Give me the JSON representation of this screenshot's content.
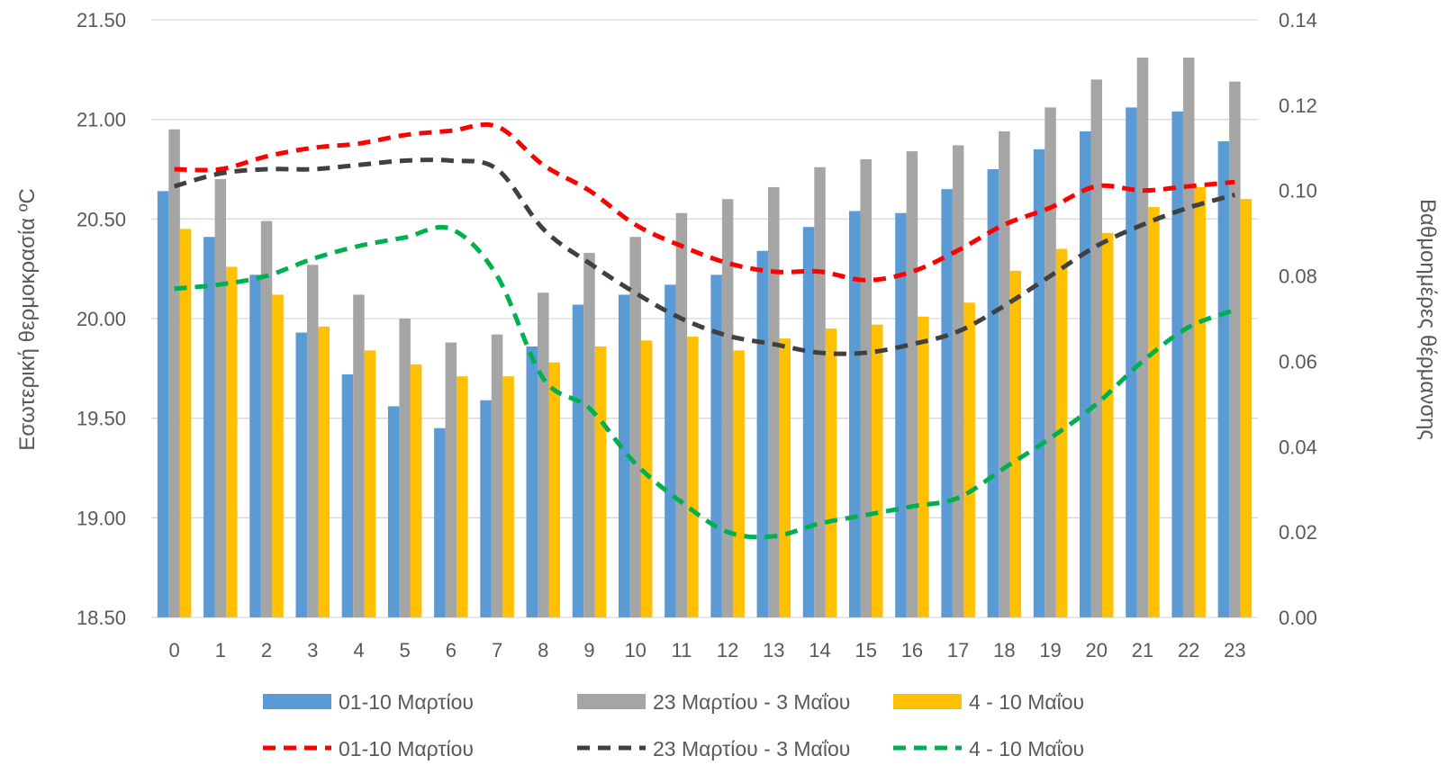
{
  "chart_data": {
    "type": "bar",
    "categories": [
      "0",
      "1",
      "2",
      "3",
      "4",
      "5",
      "6",
      "7",
      "8",
      "9",
      "10",
      "11",
      "12",
      "13",
      "14",
      "15",
      "16",
      "17",
      "18",
      "19",
      "20",
      "21",
      "22",
      "23"
    ],
    "y_left": {
      "label": "Εσωτερική θερμοκρασία ºC",
      "ylim": [
        18.5,
        21.5
      ],
      "ticks": [
        "18.50",
        "19.00",
        "19.50",
        "20.00",
        "20.50",
        "21.00",
        "21.50"
      ]
    },
    "y_right": {
      "label": "Βαθμοημέρες θέρμανσης",
      "ylim": [
        0,
        0.14
      ],
      "ticks": [
        "0.00",
        "0.02",
        "0.04",
        "0.06",
        "0.08",
        "0.10",
        "0.12",
        "0.14"
      ]
    },
    "grid": true,
    "legend_position": "bottom",
    "bar_series": [
      {
        "name": "01-10 Μαρτίου",
        "color": "#5B9BD5",
        "values": [
          20.64,
          20.41,
          20.22,
          19.93,
          19.72,
          19.56,
          19.45,
          19.59,
          19.86,
          20.07,
          20.12,
          20.17,
          20.22,
          20.34,
          20.46,
          20.54,
          20.53,
          20.65,
          20.75,
          20.85,
          20.94,
          21.06,
          21.04,
          20.89
        ]
      },
      {
        "name": "23 Μαρτίου - 3 Μαΐου",
        "color": "#A5A5A5",
        "values": [
          20.95,
          20.7,
          20.49,
          20.27,
          20.12,
          20.0,
          19.88,
          19.92,
          20.13,
          20.33,
          20.41,
          20.53,
          20.6,
          20.66,
          20.76,
          20.8,
          20.84,
          20.87,
          20.94,
          21.06,
          21.2,
          21.31,
          21.31,
          21.19
        ]
      },
      {
        "name": "4 - 10 Μαΐου",
        "color": "#FFC000",
        "values": [
          20.45,
          20.26,
          20.12,
          19.96,
          19.84,
          19.77,
          19.71,
          19.71,
          19.78,
          19.86,
          19.89,
          19.91,
          19.84,
          19.9,
          19.95,
          19.97,
          20.01,
          20.08,
          20.24,
          20.35,
          20.43,
          20.56,
          20.66,
          20.6
        ]
      }
    ],
    "line_series": [
      {
        "name": "01-10 Μαρτίου",
        "color": "#FF0000",
        "axis": "right",
        "values": [
          0.105,
          0.105,
          0.108,
          0.11,
          0.111,
          0.113,
          0.114,
          0.115,
          0.106,
          0.1,
          0.092,
          0.087,
          0.083,
          0.081,
          0.081,
          0.079,
          0.081,
          0.086,
          0.092,
          0.096,
          0.101,
          0.1,
          0.101,
          0.102
        ]
      },
      {
        "name": "23 Μαρτίου - 3 Μαΐου",
        "color": "#404040",
        "axis": "right",
        "values": [
          0.101,
          0.104,
          0.105,
          0.105,
          0.106,
          0.107,
          0.107,
          0.105,
          0.091,
          0.083,
          0.076,
          0.07,
          0.066,
          0.064,
          0.062,
          0.062,
          0.064,
          0.067,
          0.073,
          0.08,
          0.087,
          0.092,
          0.096,
          0.099
        ]
      },
      {
        "name": "4 - 10 Μαΐου",
        "color": "#00B050",
        "axis": "right",
        "values": [
          0.077,
          0.078,
          0.08,
          0.084,
          0.087,
          0.089,
          0.091,
          0.08,
          0.056,
          0.049,
          0.036,
          0.027,
          0.02,
          0.019,
          0.022,
          0.024,
          0.026,
          0.028,
          0.035,
          0.042,
          0.05,
          0.06,
          0.068,
          0.072
        ]
      }
    ]
  }
}
